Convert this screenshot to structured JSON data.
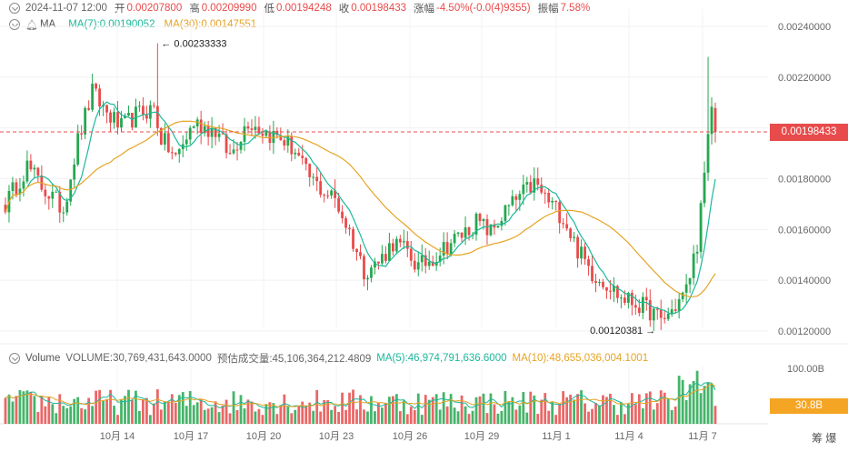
{
  "ohlc": {
    "date": "2024-11-07 12:00",
    "open_label": "开",
    "open": "0.00207800",
    "high_label": "高",
    "high": "0.00209990",
    "low_label": "低",
    "low": "0.00194248",
    "close_label": "收",
    "close": "0.00198433",
    "change_label": "涨幅",
    "change": "-4.50%(-0.0(4)9355)",
    "amplitude_label": "振幅",
    "amplitude": "7.58%"
  },
  "ma": {
    "label": "MA",
    "ma7": "MA(7):0.00190052",
    "ma30": "MA(30):0.00147551"
  },
  "volume_header": {
    "label": "Volume",
    "volume": "VOLUME:30,769,431,643.0000",
    "estimate": "预估成交量:45,106,364,212.4809",
    "ma5": "MA(5):46,974,791,636.6000",
    "ma10": "MA(10):48,655,036,004.1001"
  },
  "price_tag": "0.00198433",
  "volume_max": "100.00B",
  "volume_tag": "30.8B",
  "corner_label": "筹 爆",
  "colors": {
    "up": "#25a750",
    "down": "#e84b4b",
    "ma7": "#1cb89a",
    "ma30": "#e6a324"
  },
  "chart_data": {
    "type": "candlestick",
    "title": "",
    "x_tick_labels": [
      "10月 14",
      "10月 17",
      "10月 20",
      "10月 23",
      "10月 26",
      "10月 29",
      "11月 1",
      "11月 4",
      "11月 7"
    ],
    "y_tick_labels": [
      "0.00240000",
      "0.00220000",
      "0.00200000",
      "0.00180000",
      "0.00160000",
      "0.00140000",
      "0.00120000"
    ],
    "ylim": [
      0.00116,
      0.00243
    ],
    "current_price": 0.00198433,
    "annotations": {
      "high": "0.00233333",
      "low": "0.00120381"
    },
    "price_waypoints": [
      [
        0,
        0.0017
      ],
      [
        6,
        0.00185
      ],
      [
        10,
        0.00177
      ],
      [
        16,
        0.00168
      ],
      [
        20,
        0.00195
      ],
      [
        24,
        0.00214
      ],
      [
        28,
        0.00206
      ],
      [
        32,
        0.002
      ],
      [
        36,
        0.00205
      ],
      [
        41,
        0.00208
      ],
      [
        43,
        0.00196
      ],
      [
        47,
        0.00188
      ],
      [
        52,
        0.00202
      ],
      [
        58,
        0.00199
      ],
      [
        62,
        0.00189
      ],
      [
        67,
        0.00203
      ],
      [
        72,
        0.00198
      ],
      [
        76,
        0.00196
      ],
      [
        80,
        0.00191
      ],
      [
        83,
        0.00182
      ],
      [
        87,
        0.00176
      ],
      [
        91,
        0.00172
      ],
      [
        95,
        0.00159
      ],
      [
        99,
        0.00144
      ],
      [
        103,
        0.00147
      ],
      [
        107,
        0.00155
      ],
      [
        111,
        0.00151
      ],
      [
        114,
        0.00145
      ],
      [
        118,
        0.00149
      ],
      [
        122,
        0.00154
      ],
      [
        126,
        0.00158
      ],
      [
        130,
        0.00163
      ],
      [
        134,
        0.00159
      ],
      [
        138,
        0.00167
      ],
      [
        142,
        0.00173
      ],
      [
        146,
        0.00178
      ],
      [
        150,
        0.00171
      ],
      [
        154,
        0.00165
      ],
      [
        158,
        0.00152
      ],
      [
        162,
        0.00143
      ],
      [
        166,
        0.00139
      ],
      [
        170,
        0.00133
      ],
      [
        174,
        0.00131
      ],
      [
        178,
        0.00128
      ],
      [
        181,
        0.00124
      ],
      [
        184,
        0.00128
      ],
      [
        188,
        0.00136
      ],
      [
        191,
        0.00155
      ],
      [
        193,
        0.0018
      ],
      [
        195,
        0.00209
      ],
      [
        196,
        0.002
      ]
    ],
    "volume_ylim": [
      0,
      100
    ],
    "volume_units": "B"
  }
}
